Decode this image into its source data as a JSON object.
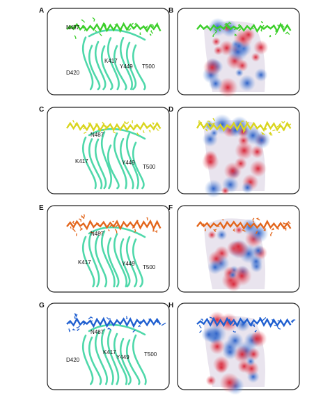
{
  "panels": [
    {
      "letter": "A",
      "residues": [
        "N487",
        "K417",
        "Y449",
        "T500",
        "D420"
      ]
    },
    {
      "letter": "B",
      "residues": []
    },
    {
      "letter": "C",
      "residues": [
        "N487",
        "K417",
        "Y449",
        "T500"
      ]
    },
    {
      "letter": "D",
      "residues": []
    },
    {
      "letter": "E",
      "residues": [
        "N487",
        "K417",
        "Y449",
        "T500"
      ]
    },
    {
      "letter": "F",
      "residues": []
    },
    {
      "letter": "G",
      "residues": [
        "N487",
        "D420",
        "K417",
        "Y449",
        "T500"
      ]
    },
    {
      "letter": "H",
      "residues": []
    }
  ]
}
